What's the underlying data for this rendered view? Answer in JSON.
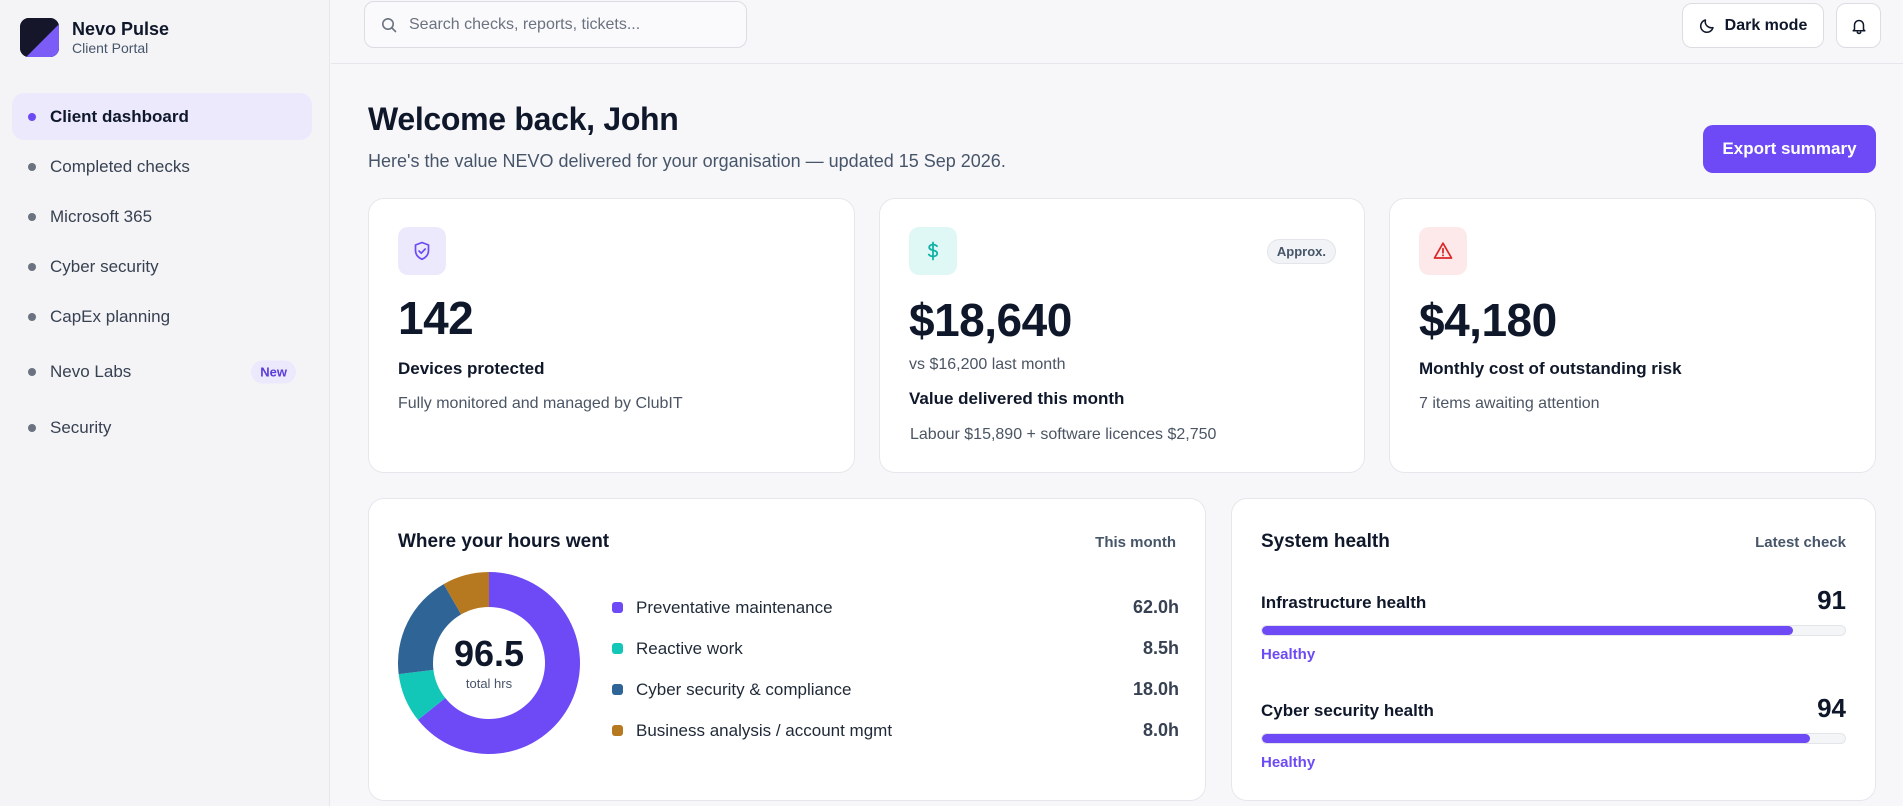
{
  "brand": {
    "name": "Nevo Pulse",
    "subtitle": "Client Portal"
  },
  "sidebar": {
    "items": [
      {
        "label": "Client dashboard",
        "active": true
      },
      {
        "label": "Completed checks"
      },
      {
        "label": "Microsoft 365"
      },
      {
        "label": "Cyber security"
      },
      {
        "label": "CapEx planning"
      },
      {
        "label": "Nevo Labs",
        "badge": "New"
      },
      {
        "label": "Security"
      }
    ]
  },
  "topbar": {
    "search_placeholder": "Search checks, reports, tickets...",
    "dark_mode_label": "Dark mode"
  },
  "header": {
    "title": "Welcome back, John",
    "subtitle": "Here's the value NEVO delivered for your organisation — updated 15 Sep 2026.",
    "export_label": "Export summary"
  },
  "stats": {
    "devices": {
      "value": "142",
      "label": "Devices protected",
      "note": "Fully monitored and managed by ClubIT"
    },
    "value": {
      "value": "$18,640",
      "badge": "Approx.",
      "comparison": "vs $16,200 last month",
      "label": "Value delivered this month",
      "note": "Labour $15,890 + software licences $2,750"
    },
    "risk": {
      "value": "$4,180",
      "label": "Monthly cost of outstanding risk",
      "note": "7 items awaiting attention"
    }
  },
  "hours": {
    "title": "Where your hours went",
    "period": "This month",
    "total": "96.5",
    "total_unit": "total hrs",
    "items": [
      {
        "label": "Preventative maintenance",
        "value_text": "62.0h",
        "hours": 62.0,
        "color": "#6d4af5"
      },
      {
        "label": "Reactive work",
        "value_text": "8.5h",
        "hours": 8.5,
        "color": "#12c7b8"
      },
      {
        "label": "Cyber security & compliance",
        "value_text": "18.0h",
        "hours": 18.0,
        "color": "#2f6496"
      },
      {
        "label": "Business analysis / account mgmt",
        "value_text": "8.0h",
        "hours": 8.0,
        "color": "#b7791f"
      }
    ]
  },
  "health": {
    "title": "System health",
    "meta": "Latest check",
    "rows": [
      {
        "name": "Infrastructure health",
        "score": "91",
        "score_pct": 91,
        "status": "Healthy"
      },
      {
        "name": "Cyber security health",
        "score": "94",
        "score_pct": 94,
        "status": "Healthy"
      }
    ]
  },
  "colors": {
    "accent": "#6d4af5",
    "accent_soft": "#ece9fd",
    "teal": "#12c7b8",
    "danger": "#dc2626"
  }
}
